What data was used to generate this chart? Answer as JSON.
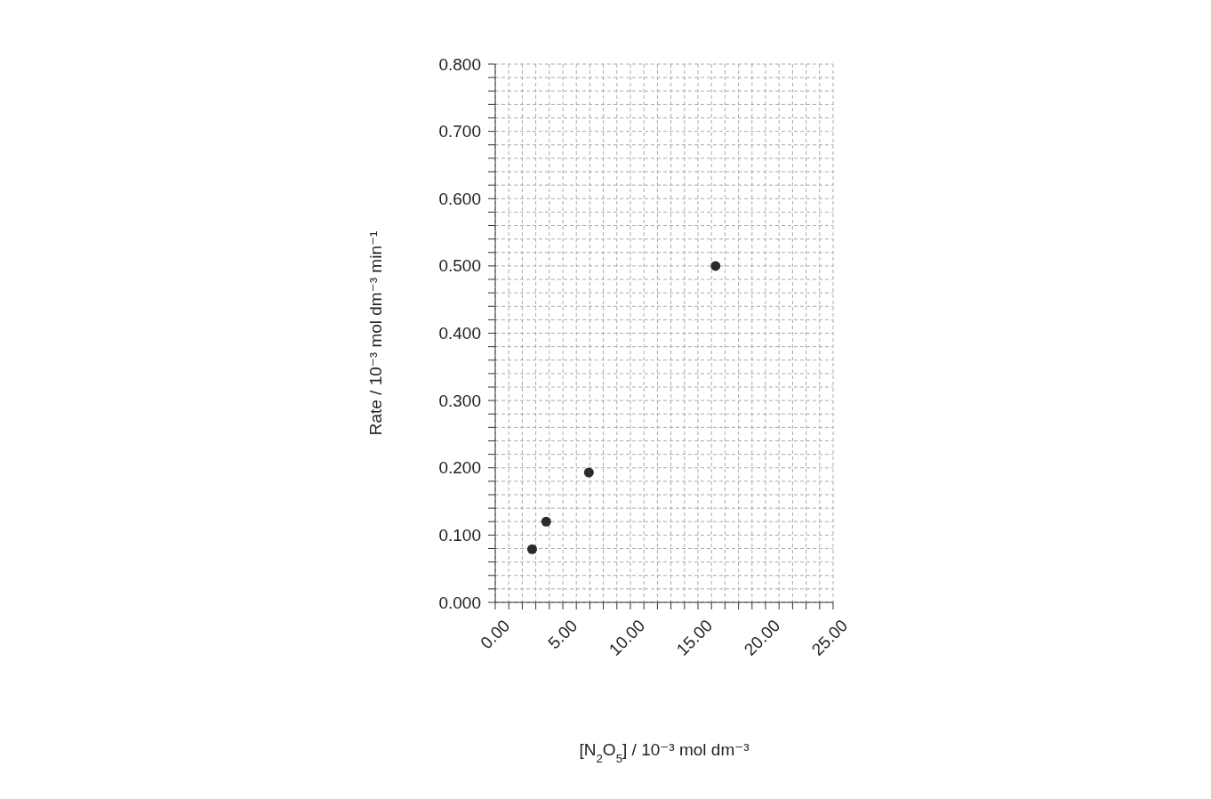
{
  "chart_data": {
    "type": "scatter",
    "xlabel": "[N$_{2}$O$_{5}$] / 10⁻³ mol dm⁻³",
    "ylabel": "Rate / 10⁻³ mol dm⁻³ min⁻¹",
    "x": [
      2.73,
      3.77,
      6.93,
      16.3
    ],
    "series": [
      {
        "color": "#2b2b2b",
        "values": [
          0.079,
          0.12,
          0.193,
          0.5
        ]
      }
    ],
    "marker": "circle",
    "grid": true,
    "xlim": [
      0,
      25
    ],
    "ylim": [
      0,
      0.8
    ],
    "xticks": [
      {
        "value": 0,
        "label": "0.00"
      },
      {
        "value": 1,
        "label": null
      },
      {
        "value": 2,
        "label": null
      },
      {
        "value": 3,
        "label": null
      },
      {
        "value": 4,
        "label": null
      },
      {
        "value": 5,
        "label": "5.00"
      },
      {
        "value": 6,
        "label": null
      },
      {
        "value": 7,
        "label": null
      },
      {
        "value": 8,
        "label": null
      },
      {
        "value": 9,
        "label": null
      },
      {
        "value": 10,
        "label": "10.00"
      },
      {
        "value": 11,
        "label": null
      },
      {
        "value": 12,
        "label": null
      },
      {
        "value": 13,
        "label": null
      },
      {
        "value": 14,
        "label": null
      },
      {
        "value": 15,
        "label": "15.00"
      },
      {
        "value": 16,
        "label": null
      },
      {
        "value": 17,
        "label": null
      },
      {
        "value": 18,
        "label": null
      },
      {
        "value": 19,
        "label": null
      },
      {
        "value": 20,
        "label": "20.00"
      },
      {
        "value": 21,
        "label": null
      },
      {
        "value": 22,
        "label": null
      },
      {
        "value": 23,
        "label": null
      },
      {
        "value": 24,
        "label": null
      },
      {
        "value": 25,
        "label": "25.00"
      }
    ],
    "yticks": [
      {
        "value": 0,
        "label": "0.000"
      },
      {
        "value": 0.02,
        "label": null
      },
      {
        "value": 0.04,
        "label": null
      },
      {
        "value": 0.06,
        "label": null
      },
      {
        "value": 0.08,
        "label": null
      },
      {
        "value": 0.1,
        "label": "0.100"
      },
      {
        "value": 0.12,
        "label": null
      },
      {
        "value": 0.14,
        "label": null
      },
      {
        "value": 0.16,
        "label": null
      },
      {
        "value": 0.18,
        "label": null
      },
      {
        "value": 0.2,
        "label": "0.200"
      },
      {
        "value": 0.22,
        "label": null
      },
      {
        "value": 0.24,
        "label": null
      },
      {
        "value": 0.26,
        "label": null
      },
      {
        "value": 0.28,
        "label": null
      },
      {
        "value": 0.3,
        "label": "0.300"
      },
      {
        "value": 0.32,
        "label": null
      },
      {
        "value": 0.34,
        "label": null
      },
      {
        "value": 0.36,
        "label": null
      },
      {
        "value": 0.38,
        "label": null
      },
      {
        "value": 0.4,
        "label": "0.400"
      },
      {
        "value": 0.42,
        "label": null
      },
      {
        "value": 0.44,
        "label": null
      },
      {
        "value": 0.46,
        "label": null
      },
      {
        "value": 0.48,
        "label": null
      },
      {
        "value": 0.5,
        "label": "0.500"
      },
      {
        "value": 0.52,
        "label": null
      },
      {
        "value": 0.54,
        "label": null
      },
      {
        "value": 0.56,
        "label": null
      },
      {
        "value": 0.58,
        "label": null
      },
      {
        "value": 0.6,
        "label": "0.600"
      },
      {
        "value": 0.62,
        "label": null
      },
      {
        "value": 0.64,
        "label": null
      },
      {
        "value": 0.66,
        "label": null
      },
      {
        "value": 0.68,
        "label": null
      },
      {
        "value": 0.7,
        "label": "0.700"
      },
      {
        "value": 0.72,
        "label": null
      },
      {
        "value": 0.74,
        "label": null
      },
      {
        "value": 0.76,
        "label": null
      },
      {
        "value": 0.78,
        "label": null
      },
      {
        "value": 0.8,
        "label": "0.800"
      }
    ]
  }
}
